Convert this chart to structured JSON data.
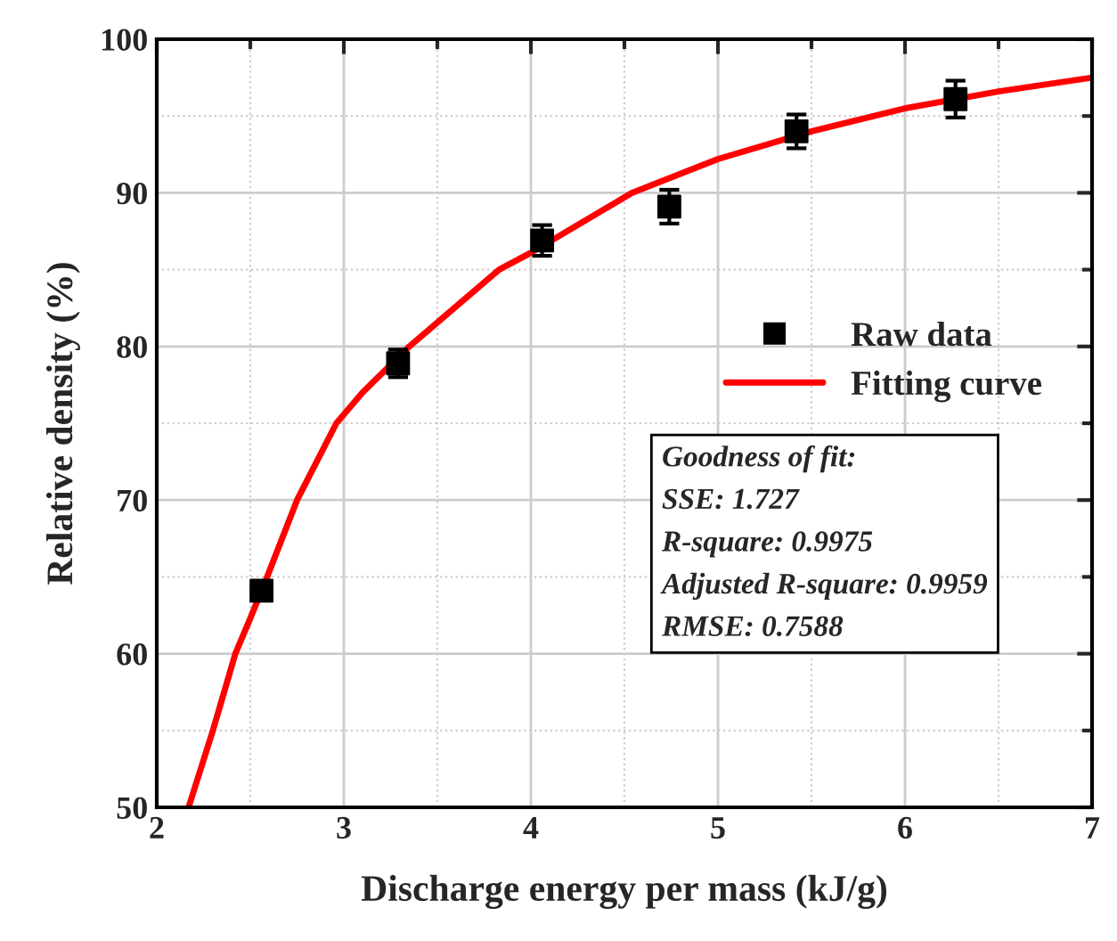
{
  "chart_data": {
    "type": "scatter",
    "xlabel": "Discharge energy per mass (kJ/g)",
    "ylabel": "Relative density (%)",
    "xlim": [
      2,
      7
    ],
    "ylim": [
      50,
      100
    ],
    "xticks": [
      2,
      3,
      4,
      5,
      6,
      7
    ],
    "yticks": [
      50,
      60,
      70,
      80,
      90,
      100
    ],
    "grid": true,
    "legend": "right",
    "series": [
      {
        "name": "Raw data",
        "color": "#000000",
        "marker": "square",
        "x": [
          2.56,
          3.29,
          4.06,
          4.74,
          5.42,
          6.27
        ],
        "values": [
          64.1,
          78.9,
          86.9,
          89.1,
          94.0,
          96.1
        ],
        "errors": [
          0.5,
          0.9,
          1.0,
          1.1,
          1.1,
          1.2
        ]
      },
      {
        "name": "Fitting curve",
        "type": "line",
        "color": "#ff0000",
        "line_style": "solid",
        "x": [
          2.17,
          2.3,
          2.42,
          2.5,
          2.59,
          2.75,
          2.96,
          3.1,
          3.35,
          3.83,
          4.0,
          4.54,
          5.0,
          5.5,
          6.0,
          6.5,
          7.0
        ],
        "values": [
          50,
          55,
          60,
          62.3,
          65,
          70,
          75,
          77,
          80,
          85,
          86.1,
          90,
          92.2,
          94.0,
          95.5,
          96.6,
          97.5
        ]
      }
    ],
    "annotations": [
      "Goodness of fit:",
      "SSE: 1.727",
      "R-square: 0.9975",
      "Adjusted R-square: 0.9959",
      "RMSE: 0.7588"
    ]
  }
}
